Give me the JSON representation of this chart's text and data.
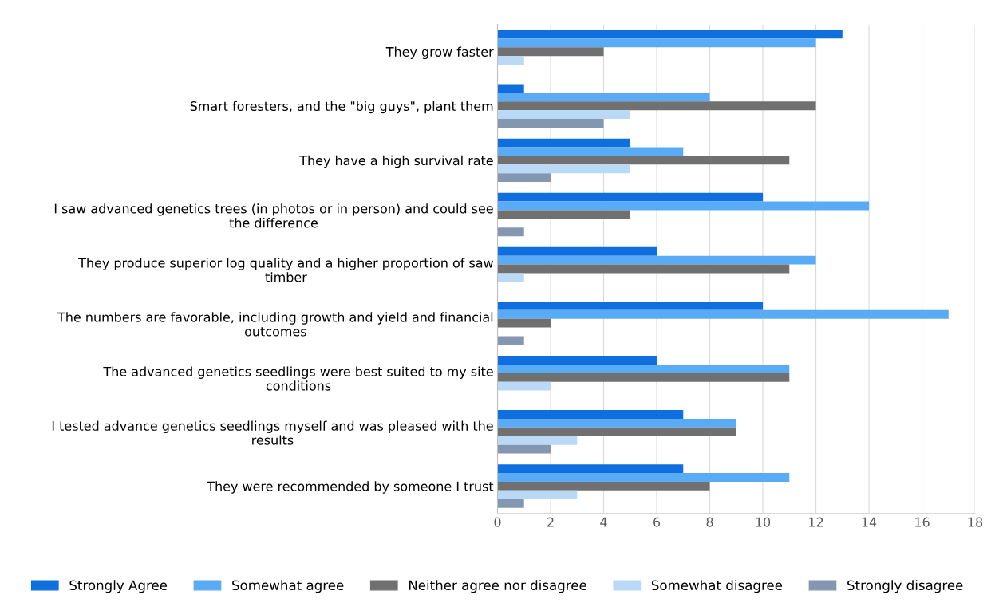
{
  "chart_data": {
    "type": "bar",
    "orientation": "horizontal",
    "categories": [
      "They grow faster",
      "Smart foresters, and the \"big guys\", plant them",
      "They have a high survival rate",
      "I saw advanced genetics trees (in photos or in person) and could see\nthe difference",
      "They produce superior log quality and a higher proportion of saw\ntimber",
      "The numbers are favorable, including growth and yield and financial\noutcomes",
      "The advanced genetics seedlings were best suited to my site\nconditions",
      "I tested advance genetics seedlings myself and was pleased with the\nresults",
      "They were recommended by someone I trust"
    ],
    "series": [
      {
        "name": "Strongly Agree",
        "color": "#0f6fde",
        "values": [
          13,
          1,
          5,
          10,
          6,
          10,
          6,
          7,
          7
        ]
      },
      {
        "name": "Somewhat agree",
        "color": "#5aabf5",
        "values": [
          12,
          8,
          7,
          14,
          12,
          17,
          11,
          9,
          11
        ]
      },
      {
        "name": "Neither agree nor disagree",
        "color": "#707070",
        "values": [
          4,
          12,
          11,
          5,
          11,
          2,
          11,
          9,
          8
        ]
      },
      {
        "name": "Somewhat disagree",
        "color": "#b9d9f7",
        "values": [
          1,
          5,
          5,
          0,
          1,
          0,
          2,
          3,
          3
        ]
      },
      {
        "name": "Strongly disagree",
        "color": "#8497b0",
        "values": [
          0,
          4,
          2,
          1,
          0,
          1,
          0,
          2,
          1
        ]
      }
    ],
    "xlim": [
      0,
      18
    ],
    "xticks": [
      0,
      2,
      4,
      6,
      8,
      10,
      12,
      14,
      16,
      18
    ],
    "grid": "x",
    "legend": "bottom"
  }
}
